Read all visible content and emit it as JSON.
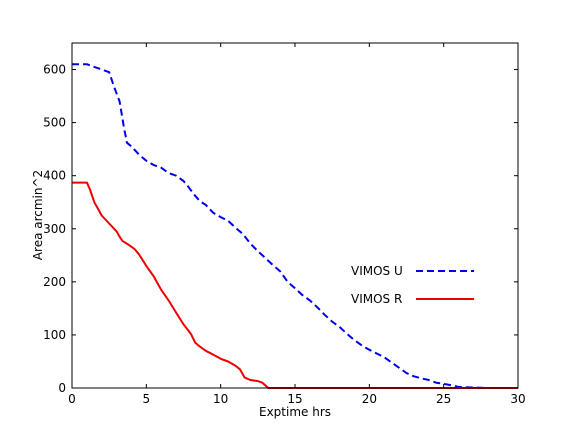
{
  "chart_data": {
    "type": "line",
    "title": "",
    "xlabel": "Exptime hrs",
    "ylabel": "Area arcmin^2",
    "xlim": [
      0,
      30
    ],
    "ylim": [
      0,
      650
    ],
    "xticks": [
      0,
      5,
      10,
      15,
      20,
      25,
      30
    ],
    "yticks": [
      0,
      100,
      200,
      300,
      400,
      500,
      600
    ],
    "grid": false,
    "legend_placement": "center-right",
    "series": [
      {
        "name": "VIMOS U",
        "color": "#0000ee",
        "style": "dashed",
        "x": [
          0,
          1.0,
          1.5,
          2.0,
          2.5,
          2.8,
          3.2,
          3.5,
          3.7,
          4.0,
          4.5,
          5.0,
          5.5,
          6.0,
          6.5,
          7.0,
          7.5,
          7.8,
          8.2,
          8.6,
          9.0,
          9.5,
          10.0,
          10.5,
          11.0,
          11.5,
          12.0,
          12.5,
          13.0,
          13.5,
          14.0,
          14.5,
          15.0,
          15.5,
          16.0,
          16.5,
          17.0,
          17.5,
          18.0,
          18.5,
          19.0,
          19.5,
          20.0,
          20.5,
          21.0,
          21.5,
          22.0,
          22.5,
          23.0,
          23.5,
          24.0,
          24.5,
          25.0,
          25.5,
          26.0,
          27.0,
          28.0,
          29.0,
          30.0
        ],
        "y": [
          610,
          610,
          605,
          600,
          595,
          570,
          540,
          490,
          462,
          455,
          440,
          428,
          420,
          415,
          405,
          400,
          390,
          380,
          365,
          352,
          345,
          330,
          322,
          315,
          302,
          290,
          272,
          258,
          245,
          232,
          220,
          200,
          188,
          175,
          165,
          152,
          138,
          125,
          115,
          102,
          90,
          80,
          72,
          65,
          58,
          48,
          38,
          28,
          22,
          18,
          15,
          10,
          8,
          5,
          2,
          1,
          0,
          0,
          0
        ]
      },
      {
        "name": "VIMOS R",
        "color": "#ee0000",
        "style": "solid",
        "x": [
          0,
          1.0,
          1.2,
          1.5,
          2.0,
          2.5,
          3.0,
          3.2,
          3.4,
          3.8,
          4.2,
          4.5,
          5.0,
          5.5,
          6.0,
          6.5,
          7.0,
          7.5,
          8.0,
          8.3,
          8.6,
          9.0,
          9.5,
          10.0,
          10.5,
          11.0,
          11.3,
          11.6,
          12.0,
          12.5,
          12.8,
          13.0,
          13.2,
          14.0,
          20.0,
          30.0
        ],
        "y": [
          387,
          387,
          375,
          350,
          325,
          310,
          295,
          285,
          277,
          270,
          262,
          252,
          230,
          210,
          185,
          165,
          142,
          120,
          102,
          85,
          78,
          70,
          63,
          55,
          50,
          42,
          35,
          20,
          15,
          13,
          10,
          5,
          0,
          0,
          0,
          0
        ]
      }
    ]
  }
}
